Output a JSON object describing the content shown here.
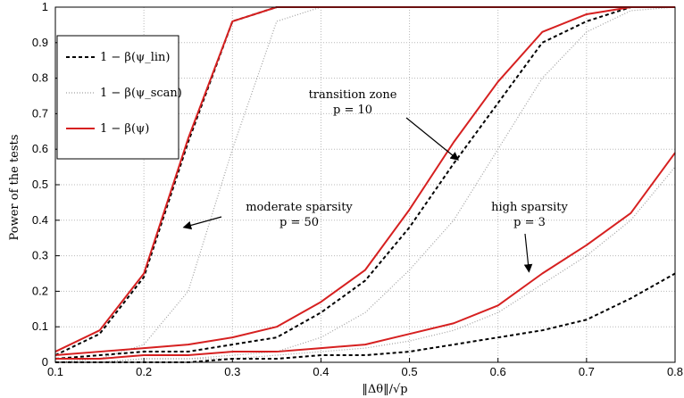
{
  "chart_data": {
    "type": "line",
    "xlabel": "‖Δθ‖/√p",
    "ylabel": "Power of the tests",
    "xlim": [
      0.1,
      0.8
    ],
    "ylim": [
      0,
      1
    ],
    "xticks": [
      "0.1",
      "0.2",
      "0.3",
      "0.4",
      "0.5",
      "0.6",
      "0.7",
      "0.8"
    ],
    "yticks": [
      "0",
      "0.1",
      "0.2",
      "0.3",
      "0.4",
      "0.5",
      "0.6",
      "0.7",
      "0.8",
      "0.9",
      "1"
    ],
    "grid": true,
    "legend_position": "top-left",
    "legend": [
      {
        "label": "1 − β(ψ_lin)",
        "style": "dashed",
        "color": "#000000"
      },
      {
        "label": "1 − β(ψ_scan)",
        "style": "dotted",
        "color": "#a0a0a0"
      },
      {
        "label": "1 − β(ψ)",
        "style": "solid",
        "color": "#d62020"
      }
    ],
    "annotations": [
      {
        "lines": [
          "moderate sparsity",
          "p = 50"
        ],
        "arrow_to": [
          0.245,
          0.38
        ]
      },
      {
        "lines": [
          "transition zone",
          "p = 10"
        ],
        "arrow_to": [
          0.555,
          0.57
        ]
      },
      {
        "lines": [
          "high sparsity",
          "p = 3"
        ],
        "arrow_to": [
          0.635,
          0.255
        ]
      }
    ],
    "x": [
      0.1,
      0.15,
      0.2,
      0.25,
      0.3,
      0.35,
      0.4,
      0.45,
      0.5,
      0.55,
      0.6,
      0.65,
      0.7,
      0.75,
      0.8
    ],
    "series": [
      {
        "group": "p = 50",
        "kind": "lin",
        "values": [
          0.02,
          0.08,
          0.24,
          0.62,
          0.96,
          1.0,
          1.0,
          1.0,
          1.0,
          1.0,
          1.0,
          1.0,
          1.0,
          1.0,
          1.0
        ]
      },
      {
        "group": "p = 50",
        "kind": "scan",
        "values": [
          0.0,
          0.01,
          0.05,
          0.2,
          0.6,
          0.96,
          1.0,
          1.0,
          1.0,
          1.0,
          1.0,
          1.0,
          1.0,
          1.0,
          1.0
        ]
      },
      {
        "group": "p = 50",
        "kind": "psi",
        "values": [
          0.03,
          0.09,
          0.25,
          0.63,
          0.96,
          1.0,
          1.0,
          1.0,
          1.0,
          1.0,
          1.0,
          1.0,
          1.0,
          1.0,
          1.0
        ]
      },
      {
        "group": "p = 10",
        "kind": "lin",
        "values": [
          0.01,
          0.02,
          0.03,
          0.03,
          0.05,
          0.07,
          0.14,
          0.23,
          0.38,
          0.56,
          0.73,
          0.9,
          0.96,
          1.0,
          1.0
        ]
      },
      {
        "group": "p = 10",
        "kind": "scan",
        "values": [
          0.0,
          0.0,
          0.01,
          0.01,
          0.02,
          0.03,
          0.07,
          0.14,
          0.26,
          0.4,
          0.6,
          0.8,
          0.93,
          0.99,
          1.0
        ]
      },
      {
        "group": "p = 10",
        "kind": "psi",
        "values": [
          0.02,
          0.03,
          0.04,
          0.05,
          0.07,
          0.1,
          0.17,
          0.26,
          0.43,
          0.62,
          0.79,
          0.93,
          0.98,
          1.0,
          1.0
        ]
      },
      {
        "group": "p = 3",
        "kind": "lin",
        "values": [
          0.0,
          0.0,
          0.0,
          0.0,
          0.01,
          0.01,
          0.02,
          0.02,
          0.03,
          0.05,
          0.07,
          0.09,
          0.12,
          0.18,
          0.25
        ]
      },
      {
        "group": "p = 3",
        "kind": "scan",
        "values": [
          0.0,
          0.0,
          0.01,
          0.01,
          0.01,
          0.02,
          0.03,
          0.04,
          0.06,
          0.09,
          0.14,
          0.22,
          0.3,
          0.4,
          0.55
        ]
      },
      {
        "group": "p = 3",
        "kind": "psi",
        "values": [
          0.01,
          0.01,
          0.02,
          0.02,
          0.03,
          0.03,
          0.04,
          0.05,
          0.08,
          0.11,
          0.16,
          0.25,
          0.33,
          0.42,
          0.59
        ]
      }
    ]
  }
}
